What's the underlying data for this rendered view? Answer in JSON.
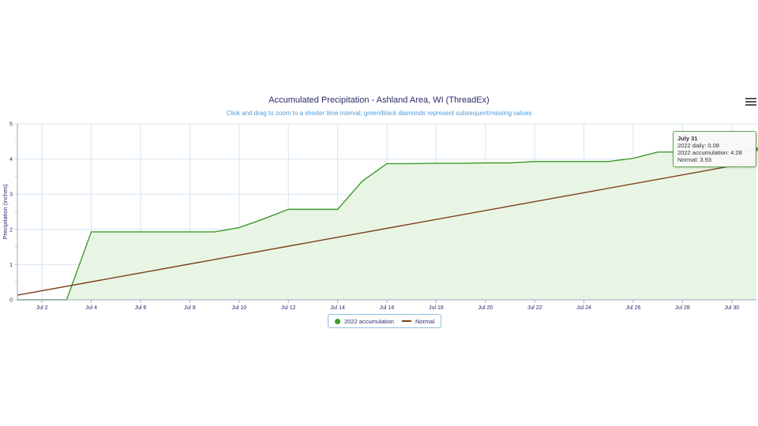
{
  "chart_data": {
    "type": "area",
    "title": "Accumulated Precipitation - Ashland Area, WI (ThreadEx)",
    "subtitle": "Click and drag to zoom to a shorter time interval; green/black diamonds represent subsequent/missing values",
    "ylabel": "Precipitation (inches)",
    "xlabel": "",
    "ylim": [
      0,
      5
    ],
    "yticks": [
      "0",
      "1",
      "2",
      "3",
      "4",
      "5"
    ],
    "xlim": [
      1,
      31
    ],
    "xtick_days": [
      2,
      4,
      6,
      8,
      10,
      12,
      14,
      16,
      18,
      20,
      22,
      24,
      26,
      28,
      30
    ],
    "xtick_labels": [
      "Jul 2",
      "Jul 4",
      "Jul 6",
      "Jul 8",
      "Jul 10",
      "Jul 12",
      "Jul 14",
      "Jul 16",
      "Jul 18",
      "Jul 20",
      "Jul 22",
      "Jul 24",
      "Jul 26",
      "Jul 28",
      "Jul 30"
    ],
    "grid": true,
    "legend_position": "bottom-center",
    "series": [
      {
        "name": "2022 accumulation",
        "color": "#3e9a2e",
        "fill": "#e9f5e4",
        "x": [
          1,
          2,
          3,
          4,
          5,
          6,
          7,
          8,
          9,
          10,
          11,
          12,
          13,
          14,
          15,
          16,
          17,
          18,
          19,
          20,
          21,
          22,
          23,
          24,
          25,
          26,
          27,
          28,
          29,
          30,
          31
        ],
        "values": [
          0,
          0,
          0,
          1.93,
          1.93,
          1.93,
          1.93,
          1.93,
          1.93,
          2.05,
          2.3,
          2.57,
          2.57,
          2.57,
          3.37,
          3.87,
          3.87,
          3.88,
          3.88,
          3.89,
          3.89,
          3.93,
          3.93,
          3.93,
          3.93,
          4.02,
          4.2,
          4.2,
          4.2,
          4.2,
          4.28
        ]
      },
      {
        "name": "Normal",
        "color": "#7a3f1a",
        "x": [
          1,
          31
        ],
        "values": [
          0.13,
          3.93
        ]
      }
    ],
    "tooltip": {
      "date": "July 31",
      "daily_label": "2022 daily: 0.08",
      "accum_label": "2022 accumulation: 4.28",
      "normal_label": "Normal: 3.93"
    }
  },
  "legend": {
    "items": [
      "2022 accumulation",
      "Normal"
    ]
  },
  "menu": {
    "icon": "hamburger-menu-icon"
  }
}
